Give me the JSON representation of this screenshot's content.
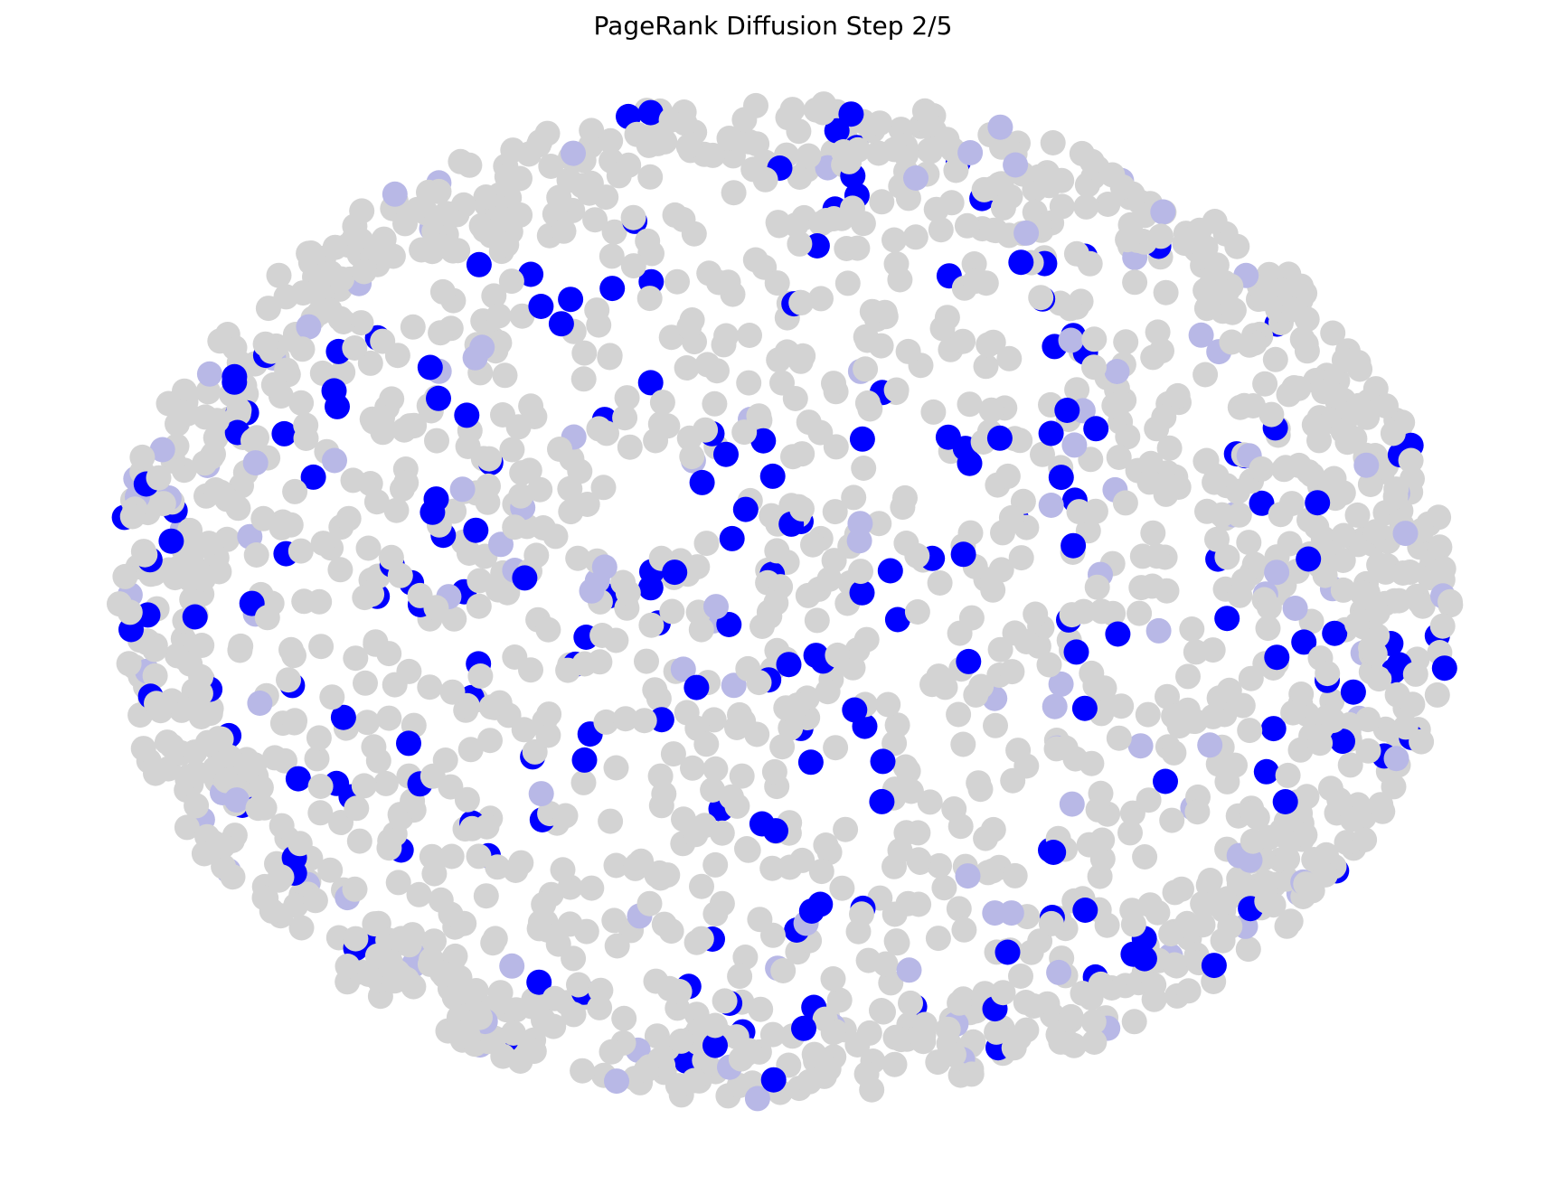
{
  "title": "PageRank Diffusion Step 2/5",
  "graph": {
    "layout": "spring (roughly elliptical cloud)",
    "node_count_estimate": 2000,
    "colors": {
      "inactive_node": "#d3d3d3",
      "active_node": "#0000ff",
      "background": "#ffffff"
    },
    "active_fraction_estimate": 0.12,
    "active_bias": "more dense near center",
    "edges_visible": false,
    "axes_visible": false
  }
}
